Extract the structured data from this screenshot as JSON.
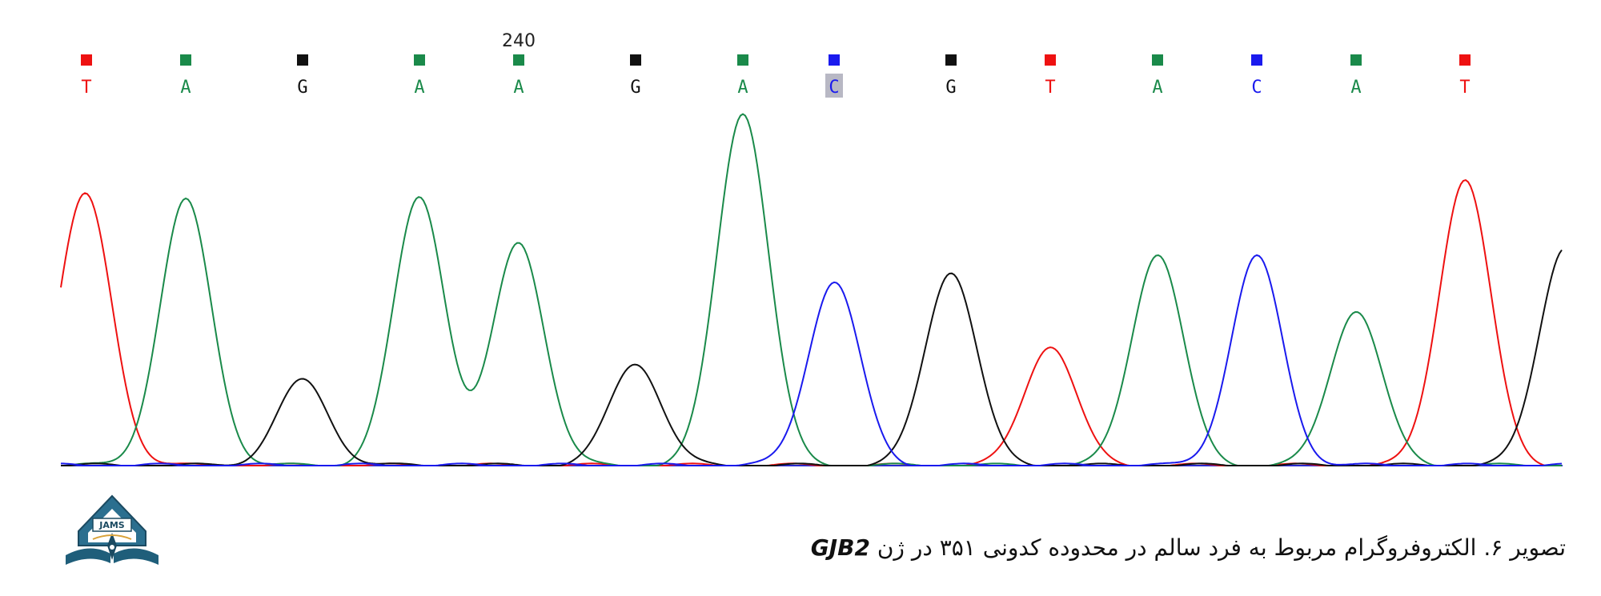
{
  "chart_data": {
    "type": "line",
    "position_label": "240",
    "bases": [
      "T",
      "A",
      "G",
      "A",
      "A",
      "G",
      "A",
      "C",
      "G",
      "T",
      "A",
      "C",
      "A",
      "T"
    ],
    "selected_index": 7,
    "colors": {
      "A": "#1a8a4a",
      "C": "#1a1aee",
      "G": "#111111",
      "T": "#ee1111"
    },
    "peak_heights": [
      0.75,
      0.75,
      0.24,
      0.76,
      0.63,
      0.29,
      1.0,
      0.52,
      0.55,
      0.34,
      0.6,
      0.59,
      0.44,
      0.81
    ],
    "y_max": 1.0,
    "grid": false,
    "legend": "none"
  },
  "caption": {
    "text": "تصویر ۶. الکتروفروگرام مربوط به فرد سالم در محدوده کدونی ۳۵۱ در ژن ",
    "gene": "GJB2"
  },
  "logo": {
    "text": "JAMS",
    "icon": "book-pen-emblem-icon"
  }
}
